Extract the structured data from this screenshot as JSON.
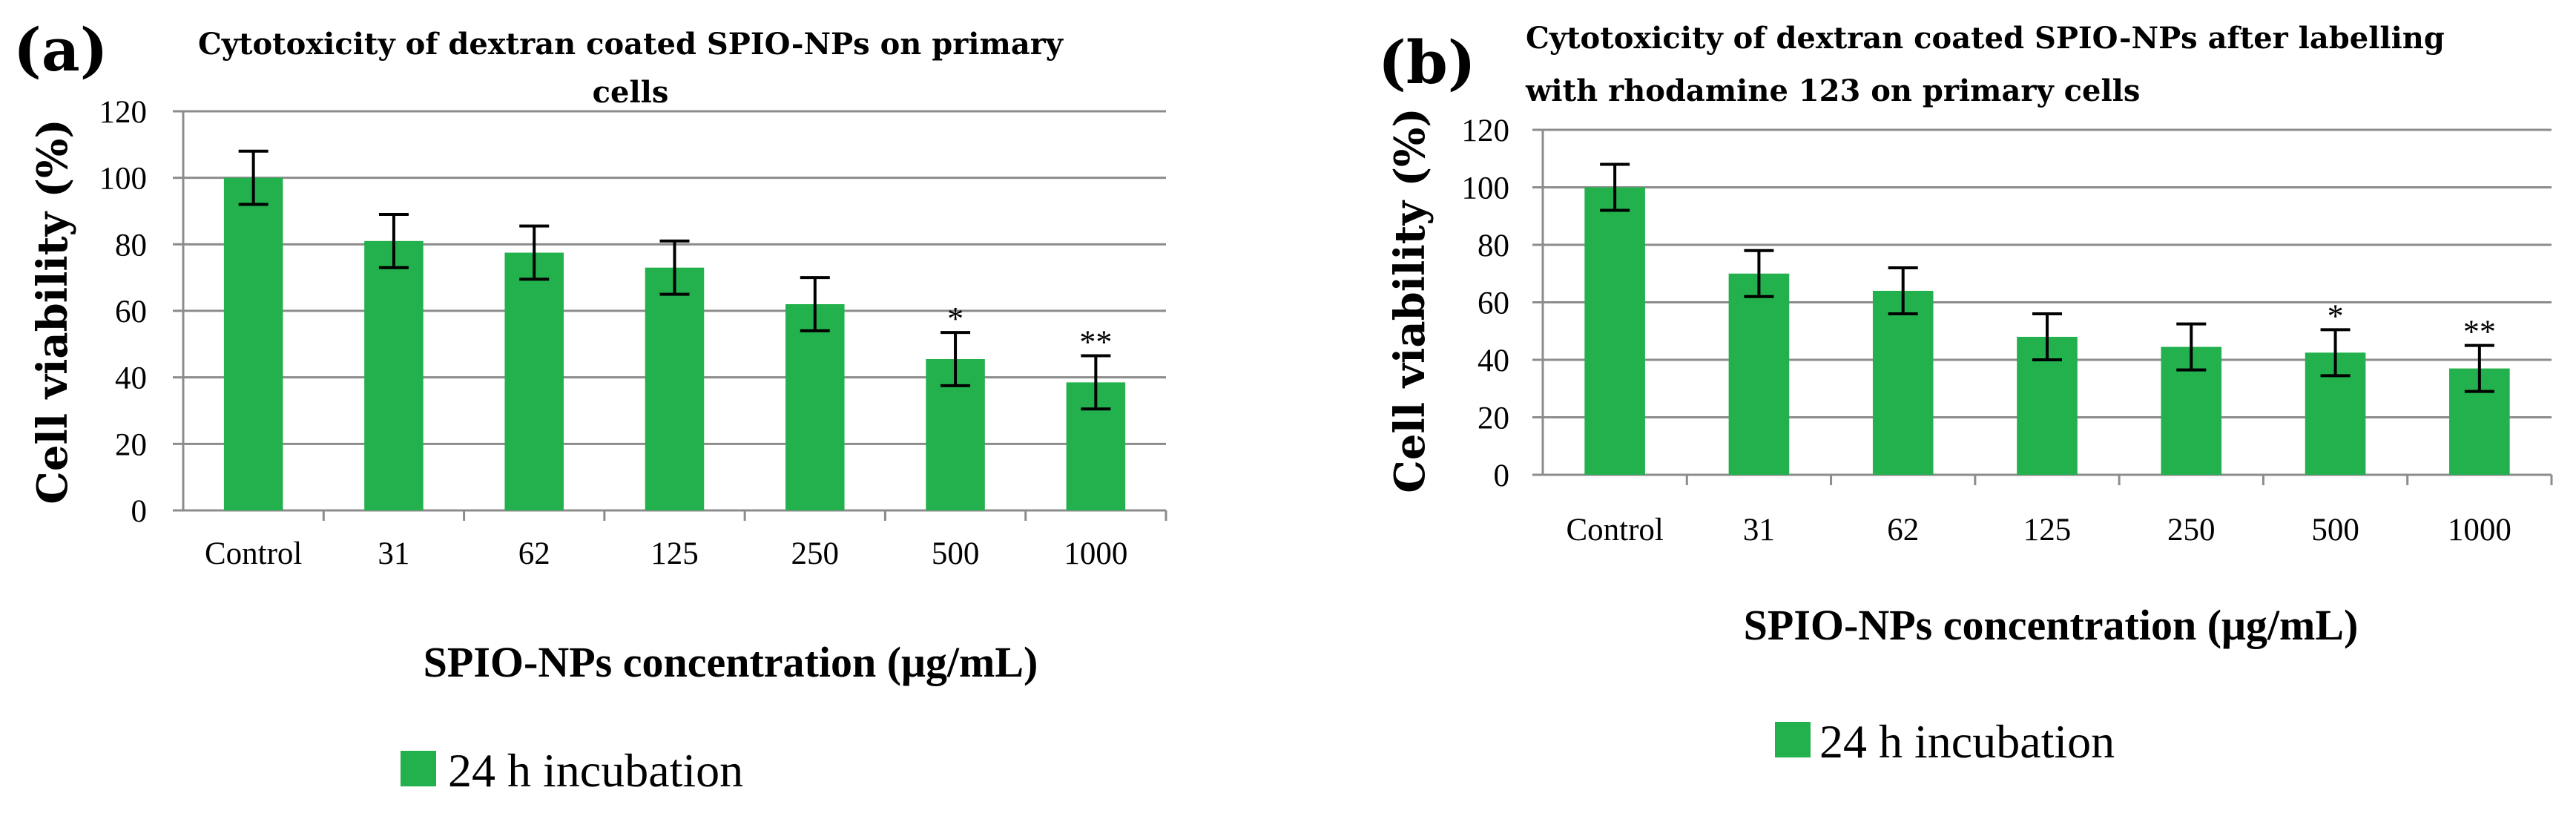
{
  "chart_data": [
    {
      "panel": "(a)",
      "type": "bar",
      "title": [
        "Cytotoxicity of dextran coated SPIO-NPs on primary",
        "cells"
      ],
      "xlabel": "SPIO-NPs concentration (μg/mL)",
      "ylabel": "Cell viability (%)",
      "categories": [
        "Control",
        "31",
        "62",
        "125",
        "250",
        "500",
        "1000"
      ],
      "series": [
        {
          "name": "24 h incubation",
          "values": [
            100,
            81,
            77.5,
            73,
            62,
            45.5,
            38.5
          ],
          "errors": [
            8,
            8,
            8,
            8,
            8,
            8,
            8
          ]
        }
      ],
      "significance": [
        "",
        "",
        "",
        "",
        "",
        "*",
        "**"
      ],
      "ylim": [
        0,
        120
      ],
      "yticks": [
        0,
        20,
        40,
        60,
        80,
        100,
        120
      ],
      "color": "#22b14c",
      "grid": true,
      "legend": "bottom"
    },
    {
      "panel": "(b)",
      "type": "bar",
      "title": [
        "Cytotoxicity of dextran coated SPIO-NPs after labelling",
        "with rhodamine 123 on primary cells"
      ],
      "xlabel": "SPIO-NPs concentration (μg/mL)",
      "ylabel": "Cell viability (%)",
      "categories": [
        "Control",
        "31",
        "62",
        "125",
        "250",
        "500",
        "1000"
      ],
      "series": [
        {
          "name": "24 h incubation",
          "values": [
            100,
            70,
            64,
            48,
            44.5,
            42.5,
            37
          ],
          "errors": [
            8,
            8,
            8,
            8,
            8,
            8,
            8
          ]
        }
      ],
      "significance": [
        "",
        "",
        "",
        "",
        "",
        "*",
        "**"
      ],
      "ylim": [
        0,
        120
      ],
      "yticks": [
        0,
        20,
        40,
        60,
        80,
        100,
        120
      ],
      "color": "#22b14c",
      "grid": true,
      "legend": "bottom"
    }
  ]
}
